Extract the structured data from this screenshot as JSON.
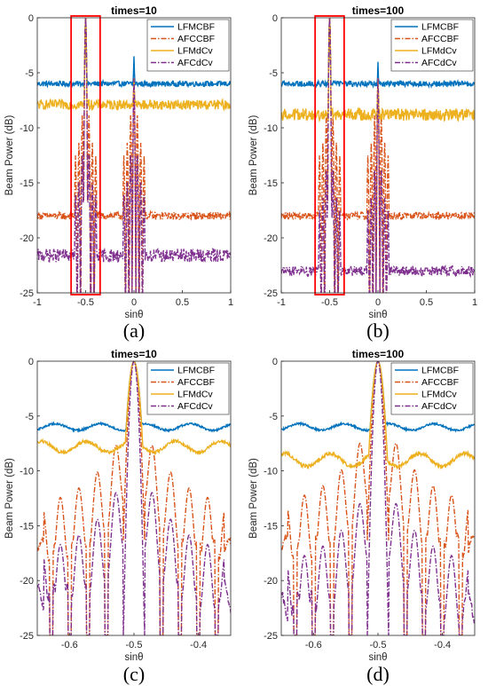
{
  "figure": {
    "colors": {
      "LFMCBF": "#0072BD",
      "AFCCBF": "#D95319",
      "LFMdCv": "#EDB120",
      "AFCdCv": "#7E2F8E",
      "highlight": "#FF0000",
      "axis": "#262626"
    },
    "line_styles": {
      "LFMCBF": "solid",
      "AFCCBF": "dash-dot",
      "LFMdCv": "solid",
      "AFCdCv": "dash-dot"
    },
    "legend_placement": "top-right",
    "ylabel": "Beam Power (dB)",
    "xlabel": "sinθ"
  },
  "chart_data": [
    {
      "type": "line",
      "id": "a",
      "caption": "(a)",
      "title": "times=10",
      "xlabel": "sinθ",
      "ylabel": "Beam Power (dB)",
      "xlim": [
        -1,
        1
      ],
      "ylim": [
        -25,
        0
      ],
      "xticks": [
        -1,
        -0.5,
        0,
        0.5,
        1
      ],
      "xtick_labels": [
        "-1",
        "-0.5",
        "0",
        "0.5",
        "1"
      ],
      "yticks": [
        0,
        -5,
        -10,
        -15,
        -20,
        -25
      ],
      "ytick_labels": [
        "0",
        "-5",
        "-10",
        "-15",
        "-20",
        "-25"
      ],
      "legend": [
        "LFMCBF",
        "AFCCBF",
        "LFMdCv",
        "AFCdCv"
      ],
      "highlight_box": {
        "x": [
          -0.65,
          -0.35
        ],
        "y": [
          -25,
          0
        ]
      },
      "series": [
        {
          "name": "LFMCBF",
          "baseline": -6.0,
          "noise": 0.25,
          "peaks": [
            {
              "x": -0.5,
              "width": 0.012,
              "height": 0
            },
            {
              "x": 0.0,
              "width": 0.01,
              "height": -3.5
            }
          ]
        },
        {
          "name": "AFCCBF",
          "baseline": -18.0,
          "noise": 0.35,
          "peaks": [
            {
              "x": -0.5,
              "width": 0.012,
              "height": 0
            },
            {
              "x": 0.0,
              "width": 0.01,
              "height": -5.5
            }
          ]
        },
        {
          "name": "LFMdCv",
          "baseline": -7.9,
          "noise": 0.45,
          "peaks": [
            {
              "x": -0.5,
              "width": 0.012,
              "height": 0
            },
            {
              "x": 0.0,
              "width": 0.01,
              "height": -5.5
            }
          ]
        },
        {
          "name": "AFCdCv",
          "baseline": -21.6,
          "noise": 0.6,
          "peaks": [
            {
              "x": -0.5,
              "width": 0.012,
              "height": 0
            },
            {
              "x": 0.0,
              "width": 0.01,
              "height": -5.5
            }
          ]
        }
      ]
    },
    {
      "type": "line",
      "id": "b",
      "caption": "(b)",
      "title": "times=100",
      "xlabel": "sinθ",
      "ylabel": "Beam Power (dB)",
      "xlim": [
        -1,
        1
      ],
      "ylim": [
        -25,
        0
      ],
      "xticks": [
        -1,
        -0.5,
        0,
        0.5,
        1
      ],
      "xtick_labels": [
        "-1",
        "-0.5",
        "0",
        "0.5",
        "1"
      ],
      "yticks": [
        0,
        -5,
        -10,
        -15,
        -20,
        -25
      ],
      "ytick_labels": [
        "0",
        "-5",
        "-10",
        "-15",
        "-20",
        "-25"
      ],
      "legend": [
        "LFMCBF",
        "AFCCBF",
        "LFMdCv",
        "AFCdCv"
      ],
      "highlight_box": {
        "x": [
          -0.65,
          -0.35
        ],
        "y": [
          -25,
          0
        ]
      },
      "series": [
        {
          "name": "LFMCBF",
          "baseline": -6.0,
          "noise": 0.25,
          "peaks": [
            {
              "x": -0.5,
              "width": 0.012,
              "height": 0
            },
            {
              "x": 0.0,
              "width": 0.01,
              "height": -4.0
            }
          ]
        },
        {
          "name": "AFCCBF",
          "baseline": -18.0,
          "noise": 0.35,
          "peaks": [
            {
              "x": -0.5,
              "width": 0.012,
              "height": 0
            },
            {
              "x": 0.0,
              "width": 0.01,
              "height": -5.5
            }
          ]
        },
        {
          "name": "LFMdCv",
          "baseline": -8.8,
          "noise": 0.55,
          "peaks": [
            {
              "x": -0.5,
              "width": 0.012,
              "height": 0
            },
            {
              "x": 0.0,
              "width": 0.01,
              "height": -5.5
            }
          ]
        },
        {
          "name": "AFCdCv",
          "baseline": -23.0,
          "noise": 0.45,
          "peaks": [
            {
              "x": -0.5,
              "width": 0.012,
              "height": 0
            },
            {
              "x": 0.0,
              "width": 0.01,
              "height": -5.5
            }
          ]
        }
      ]
    },
    {
      "type": "line",
      "id": "c",
      "caption": "(c)",
      "title": "times=10",
      "xlabel": "sinθ",
      "ylabel": "Beam Power (dB)",
      "xlim": [
        -0.65,
        -0.35
      ],
      "ylim": [
        -25,
        0
      ],
      "xticks": [
        -0.6,
        -0.5,
        -0.4
      ],
      "xtick_labels": [
        "-0.6",
        "-0.5",
        "-0.4"
      ],
      "yticks": [
        0,
        -5,
        -10,
        -15,
        -20,
        -25
      ],
      "ytick_labels": [
        "0",
        "-5",
        "-10",
        "-15",
        "-20",
        "-25"
      ],
      "legend": [
        "LFMCBF",
        "AFCCBF",
        "LFMdCv",
        "AFCdCv"
      ],
      "series": [
        {
          "name": "LFMCBF",
          "baseline": -6.0,
          "noise": 0.3,
          "peaks": [
            {
              "x": -0.5,
              "width": 0.012,
              "height": 0
            }
          ]
        },
        {
          "name": "AFCCBF",
          "baseline": -17.2,
          "noise": 0.9,
          "peaks": [
            {
              "x": -0.5,
              "width": 0.01,
              "height": 0
            }
          ]
        },
        {
          "name": "LFMdCv",
          "baseline": -7.8,
          "noise": 0.5,
          "peaks": [
            {
              "x": -0.5,
              "width": 0.012,
              "height": 0
            }
          ]
        },
        {
          "name": "AFCdCv",
          "baseline": -21.5,
          "noise": 1.2,
          "peaks": [
            {
              "x": -0.5,
              "width": 0.008,
              "height": 0
            }
          ]
        }
      ]
    },
    {
      "type": "line",
      "id": "d",
      "caption": "(d)",
      "title": "times=100",
      "xlabel": "sinθ",
      "ylabel": "Beam Power (dB)",
      "xlim": [
        -0.65,
        -0.35
      ],
      "ylim": [
        -25,
        0
      ],
      "xticks": [
        -0.6,
        -0.5,
        -0.4
      ],
      "xtick_labels": [
        "-0.6",
        "-0.5",
        "-0.4"
      ],
      "yticks": [
        0,
        -5,
        -10,
        -15,
        -20,
        -25
      ],
      "ytick_labels": [
        "0",
        "-5",
        "-10",
        "-15",
        "-20",
        "-25"
      ],
      "legend": [
        "LFMCBF",
        "AFCCBF",
        "LFMdCv",
        "AFCdCv"
      ],
      "series": [
        {
          "name": "LFMCBF",
          "baseline": -6.0,
          "noise": 0.3,
          "peaks": [
            {
              "x": -0.5,
              "width": 0.012,
              "height": 0
            }
          ]
        },
        {
          "name": "AFCCBF",
          "baseline": -17.0,
          "noise": 1.0,
          "peaks": [
            {
              "x": -0.5,
              "width": 0.01,
              "height": 0
            }
          ]
        },
        {
          "name": "LFMdCv",
          "baseline": -9.0,
          "noise": 0.6,
          "peaks": [
            {
              "x": -0.5,
              "width": 0.012,
              "height": 0
            }
          ]
        },
        {
          "name": "AFCdCv",
          "baseline": -22.5,
          "noise": 1.4,
          "peaks": [
            {
              "x": -0.5,
              "width": 0.008,
              "height": 0
            }
          ]
        }
      ]
    }
  ]
}
